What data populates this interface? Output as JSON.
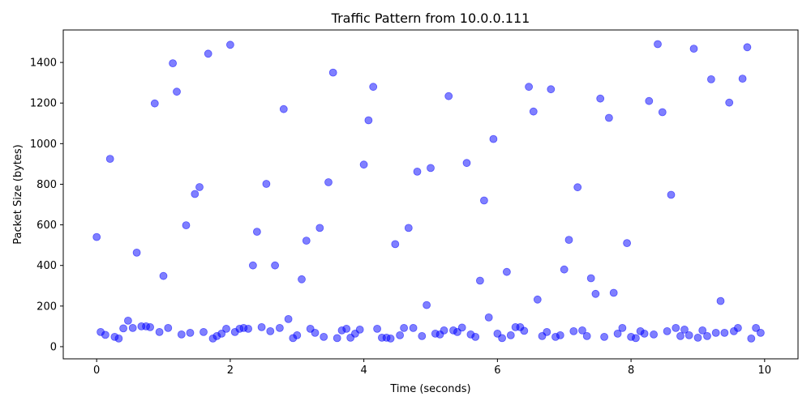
{
  "chart_data": {
    "type": "scatter",
    "title": "Traffic Pattern from 10.0.0.111",
    "xlabel": "Time (seconds)",
    "ylabel": "Packet Size (bytes)",
    "xlim": [
      -0.5,
      10.5
    ],
    "ylim": [
      -60,
      1560
    ],
    "xticks": [
      0,
      2,
      4,
      6,
      8,
      10
    ],
    "yticks": [
      0,
      200,
      400,
      600,
      800,
      1000,
      1200,
      1400
    ],
    "grid": false,
    "legend": "none",
    "marker_color": "#0000ff",
    "marker_opacity": 0.5,
    "points": [
      [
        0.0,
        540
      ],
      [
        0.06,
        72
      ],
      [
        0.13,
        58
      ],
      [
        0.2,
        925
      ],
      [
        0.27,
        48
      ],
      [
        0.33,
        40
      ],
      [
        0.4,
        90
      ],
      [
        0.47,
        128
      ],
      [
        0.54,
        92
      ],
      [
        0.6,
        463
      ],
      [
        0.67,
        100
      ],
      [
        0.74,
        100
      ],
      [
        0.8,
        96
      ],
      [
        0.87,
        1198
      ],
      [
        0.94,
        72
      ],
      [
        1.0,
        348
      ],
      [
        1.07,
        92
      ],
      [
        1.14,
        1396
      ],
      [
        1.2,
        1256
      ],
      [
        1.27,
        60
      ],
      [
        1.34,
        598
      ],
      [
        1.4,
        68
      ],
      [
        1.47,
        752
      ],
      [
        1.54,
        786
      ],
      [
        1.6,
        72
      ],
      [
        1.67,
        1443
      ],
      [
        1.74,
        40
      ],
      [
        1.8,
        52
      ],
      [
        1.87,
        64
      ],
      [
        1.94,
        88
      ],
      [
        2.0,
        1487
      ],
      [
        2.07,
        72
      ],
      [
        2.14,
        88
      ],
      [
        2.2,
        92
      ],
      [
        2.27,
        88
      ],
      [
        2.34,
        400
      ],
      [
        2.4,
        566
      ],
      [
        2.47,
        96
      ],
      [
        2.54,
        802
      ],
      [
        2.6,
        76
      ],
      [
        2.67,
        400
      ],
      [
        2.74,
        92
      ],
      [
        2.8,
        1170
      ],
      [
        2.87,
        136
      ],
      [
        2.94,
        42
      ],
      [
        3.0,
        56
      ],
      [
        3.07,
        332
      ],
      [
        3.14,
        522
      ],
      [
        3.2,
        88
      ],
      [
        3.27,
        68
      ],
      [
        3.34,
        585
      ],
      [
        3.4,
        48
      ],
      [
        3.47,
        810
      ],
      [
        3.54,
        1350
      ],
      [
        3.6,
        42
      ],
      [
        3.67,
        80
      ],
      [
        3.74,
        88
      ],
      [
        3.8,
        44
      ],
      [
        3.87,
        64
      ],
      [
        3.94,
        84
      ],
      [
        4.0,
        897
      ],
      [
        4.07,
        1115
      ],
      [
        4.14,
        1280
      ],
      [
        4.2,
        88
      ],
      [
        4.27,
        44
      ],
      [
        4.34,
        44
      ],
      [
        4.4,
        40
      ],
      [
        4.47,
        505
      ],
      [
        4.54,
        56
      ],
      [
        4.6,
        92
      ],
      [
        4.67,
        585
      ],
      [
        4.74,
        92
      ],
      [
        4.8,
        862
      ],
      [
        4.87,
        52
      ],
      [
        4.94,
        205
      ],
      [
        5.0,
        880
      ],
      [
        5.07,
        64
      ],
      [
        5.14,
        60
      ],
      [
        5.2,
        80
      ],
      [
        5.27,
        1234
      ],
      [
        5.34,
        80
      ],
      [
        5.4,
        72
      ],
      [
        5.47,
        94
      ],
      [
        5.54,
        905
      ],
      [
        5.6,
        60
      ],
      [
        5.67,
        48
      ],
      [
        5.74,
        325
      ],
      [
        5.8,
        720
      ],
      [
        5.87,
        144
      ],
      [
        5.94,
        1023
      ],
      [
        6.0,
        64
      ],
      [
        6.07,
        42
      ],
      [
        6.14,
        368
      ],
      [
        6.2,
        56
      ],
      [
        6.27,
        96
      ],
      [
        6.34,
        96
      ],
      [
        6.4,
        78
      ],
      [
        6.47,
        1280
      ],
      [
        6.54,
        1158
      ],
      [
        6.6,
        232
      ],
      [
        6.67,
        52
      ],
      [
        6.74,
        72
      ],
      [
        6.8,
        1268
      ],
      [
        6.87,
        48
      ],
      [
        6.94,
        56
      ],
      [
        7.0,
        380
      ],
      [
        7.07,
        526
      ],
      [
        7.14,
        76
      ],
      [
        7.2,
        785
      ],
      [
        7.27,
        80
      ],
      [
        7.34,
        52
      ],
      [
        7.4,
        337
      ],
      [
        7.47,
        260
      ],
      [
        7.54,
        1222
      ],
      [
        7.6,
        48
      ],
      [
        7.67,
        1127
      ],
      [
        7.74,
        265
      ],
      [
        7.8,
        64
      ],
      [
        7.87,
        92
      ],
      [
        7.94,
        510
      ],
      [
        8.0,
        48
      ],
      [
        8.07,
        42
      ],
      [
        8.14,
        76
      ],
      [
        8.2,
        64
      ],
      [
        8.27,
        1210
      ],
      [
        8.34,
        60
      ],
      [
        8.4,
        1490
      ],
      [
        8.47,
        1155
      ],
      [
        8.54,
        76
      ],
      [
        8.6,
        748
      ],
      [
        8.67,
        92
      ],
      [
        8.74,
        52
      ],
      [
        8.8,
        84
      ],
      [
        8.87,
        56
      ],
      [
        8.94,
        1468
      ],
      [
        9.0,
        44
      ],
      [
        9.07,
        80
      ],
      [
        9.14,
        52
      ],
      [
        9.2,
        1317
      ],
      [
        9.27,
        68
      ],
      [
        9.34,
        225
      ],
      [
        9.4,
        68
      ],
      [
        9.47,
        1202
      ],
      [
        9.54,
        76
      ],
      [
        9.6,
        92
      ],
      [
        9.67,
        1320
      ],
      [
        9.74,
        1475
      ],
      [
        9.8,
        40
      ],
      [
        9.87,
        92
      ],
      [
        9.94,
        68
      ]
    ]
  }
}
